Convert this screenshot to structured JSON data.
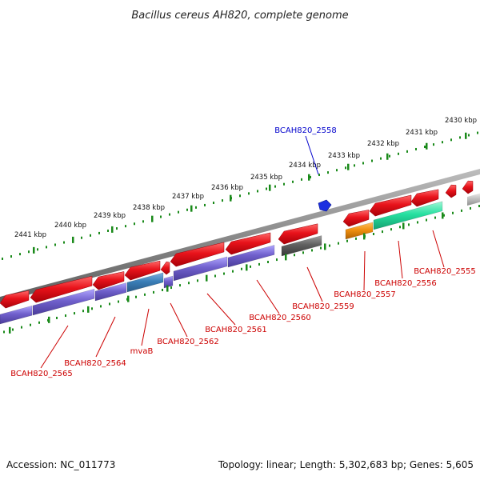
{
  "title": "Bacillus cereus AH820, complete genome",
  "footer": {
    "accession": "Accession: NC_011773",
    "summary": "Topology: linear; Length: 5,302,683 bp; Genes: 5,605"
  },
  "colors": {
    "scale": "#1a8a1a",
    "backbone": "#8a8a8a",
    "gene_red": "#e8131b",
    "gene_blue_marker": "#1a2ee0",
    "cds_purple": "#7060cc",
    "cds_teal": "#3a7fb8",
    "cds_green": "#27e0a0",
    "cds_orange": "#f09010",
    "cds_dark": "#606060",
    "label_red": "#cc0000",
    "label_blue": "#0000cc"
  },
  "scale_ticks": [
    "2430 kbp",
    "2431 kbp",
    "2432 kbp",
    "2433 kbp",
    "2434 kbp",
    "2435 kbp",
    "2436 kbp",
    "2437 kbp",
    "2438 kbp",
    "2439 kbp",
    "2440 kbp",
    "2441 kbp"
  ],
  "gene_labels": [
    {
      "text": "BCAH820_2558",
      "color": "blue"
    },
    {
      "text": "BCAH820_2555",
      "color": "red"
    },
    {
      "text": "BCAH820_2556",
      "color": "red"
    },
    {
      "text": "BCAH820_2557",
      "color": "red"
    },
    {
      "text": "BCAH820_2559",
      "color": "red"
    },
    {
      "text": "BCAH820_2560",
      "color": "red"
    },
    {
      "text": "BCAH820_2561",
      "color": "red"
    },
    {
      "text": "BCAH820_2562",
      "color": "red"
    },
    {
      "text": "mvaB",
      "color": "red"
    },
    {
      "text": "BCAH820_2564",
      "color": "red"
    },
    {
      "text": "BCAH820_2565",
      "color": "red"
    }
  ]
}
